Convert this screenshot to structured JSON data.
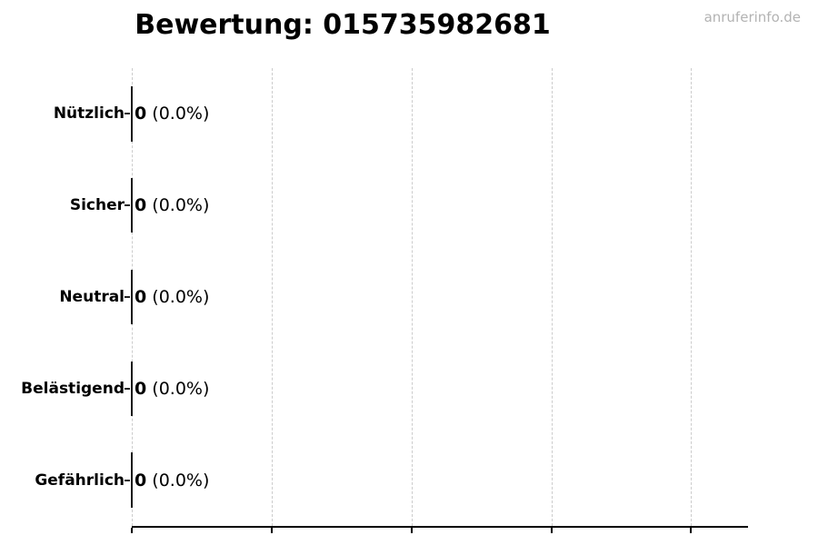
{
  "header": {
    "title": "Bewertung: 015735982681",
    "watermark": "anruferinfo.de"
  },
  "chart_data": {
    "type": "bar",
    "orientation": "horizontal",
    "title": "Bewertung: 015735982681",
    "categories": [
      "Nützlich",
      "Sicher",
      "Neutral",
      "Belästigend",
      "Gefährlich"
    ],
    "values": [
      0,
      0,
      0,
      0,
      0
    ],
    "percent_labels": [
      "0.0%",
      "0.0%",
      "0.0%",
      "0.0%",
      "0.0%"
    ],
    "rows": [
      {
        "label": "Nützlich",
        "value": "0",
        "pct": "(0.0%)"
      },
      {
        "label": "Sicher",
        "value": "0",
        "pct": "(0.0%)"
      },
      {
        "label": "Neutral",
        "value": "0",
        "pct": "(0.0%)"
      },
      {
        "label": "Belästigend",
        "value": "0",
        "pct": "(0.0%)"
      },
      {
        "label": "Gefährlich",
        "value": "0",
        "pct": "(0.0%)"
      }
    ],
    "xlabel": "",
    "ylabel": "",
    "xlim": [
      0,
      4.4
    ],
    "x_ticks": [
      0,
      1,
      2,
      3,
      4
    ],
    "x_tick_labels_visible": false,
    "grid": "vertical-dashed",
    "legend": "none",
    "bar_height_fraction": 0.6,
    "colors": {
      "text": "#000000",
      "bar": "#1a1a1a",
      "grid": "#cccccc",
      "axis": "#000000",
      "watermark": "#b3b3b3",
      "background": "#ffffff"
    }
  }
}
